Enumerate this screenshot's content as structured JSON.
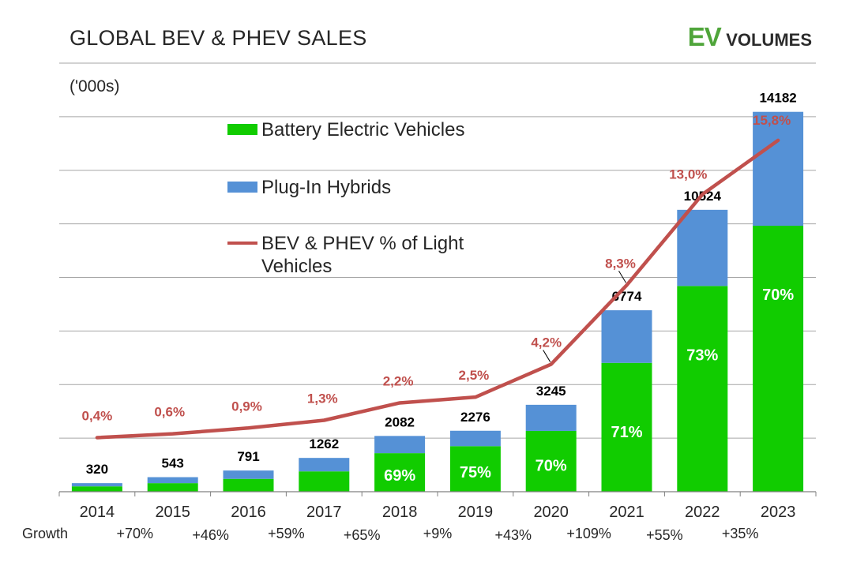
{
  "header": {
    "title": "GLOBAL BEV & PHEV SALES",
    "logo_ev": "EV",
    "logo_volumes": "VOLUMES"
  },
  "unit_label": "('000s)",
  "legend": {
    "bev": "Battery Electric Vehicles",
    "phev": "Plug-In Hybrids",
    "share_line1": "BEV & PHEV % of Light",
    "share_line2": "Vehicles"
  },
  "colors": {
    "bev": "#11cc00",
    "phev": "#5591d6",
    "share_line": "#c0504d",
    "share_label": "#c0504d"
  },
  "growth": {
    "label": "Growth",
    "values": [
      "+70%",
      "+46%",
      "+59%",
      "+65%",
      "+9%",
      "+43%",
      "+109%",
      "+55%",
      "+35%"
    ]
  },
  "chart_data": {
    "type": "bar",
    "stacked": true,
    "categories": [
      "2014",
      "2015",
      "2016",
      "2017",
      "2018",
      "2019",
      "2020",
      "2021",
      "2022",
      "2023"
    ],
    "series": [
      {
        "name": "Battery Electric Vehicles",
        "values": [
          200,
          320,
          480,
          760,
          1440,
          1700,
          2270,
          4810,
          7680,
          9930
        ]
      },
      {
        "name": "Plug-In Hybrids",
        "values": [
          120,
          223,
          311,
          502,
          642,
          576,
          975,
          1964,
          2844,
          4252
        ]
      }
    ],
    "totals": [
      320,
      543,
      791,
      1262,
      2082,
      2276,
      3245,
      6774,
      10524,
      14182
    ],
    "total_labels": [
      "320",
      "543",
      "791",
      "1262",
      "2082",
      "2276",
      "3245",
      "6774",
      "10524",
      "14182"
    ],
    "bev_share_labels": [
      "",
      "",
      "",
      "",
      "69%",
      "75%",
      "70%",
      "71%",
      "73%",
      "70%"
    ],
    "line_series": {
      "name": "BEV & PHEV % of Light Vehicles",
      "values": [
        0.4,
        0.6,
        0.9,
        1.3,
        2.2,
        2.5,
        4.2,
        8.3,
        13.0,
        15.8
      ],
      "labels": [
        "0,4%",
        "0,6%",
        "0,9%",
        "1,3%",
        "2,2%",
        "2,5%",
        "4,2%",
        "8,3%",
        "13,0%",
        "15,8%"
      ],
      "ylim": [
        -2.4,
        19.8
      ]
    },
    "ylim": [
      0,
      16000
    ],
    "grid": true,
    "legend_position": "top-left"
  }
}
